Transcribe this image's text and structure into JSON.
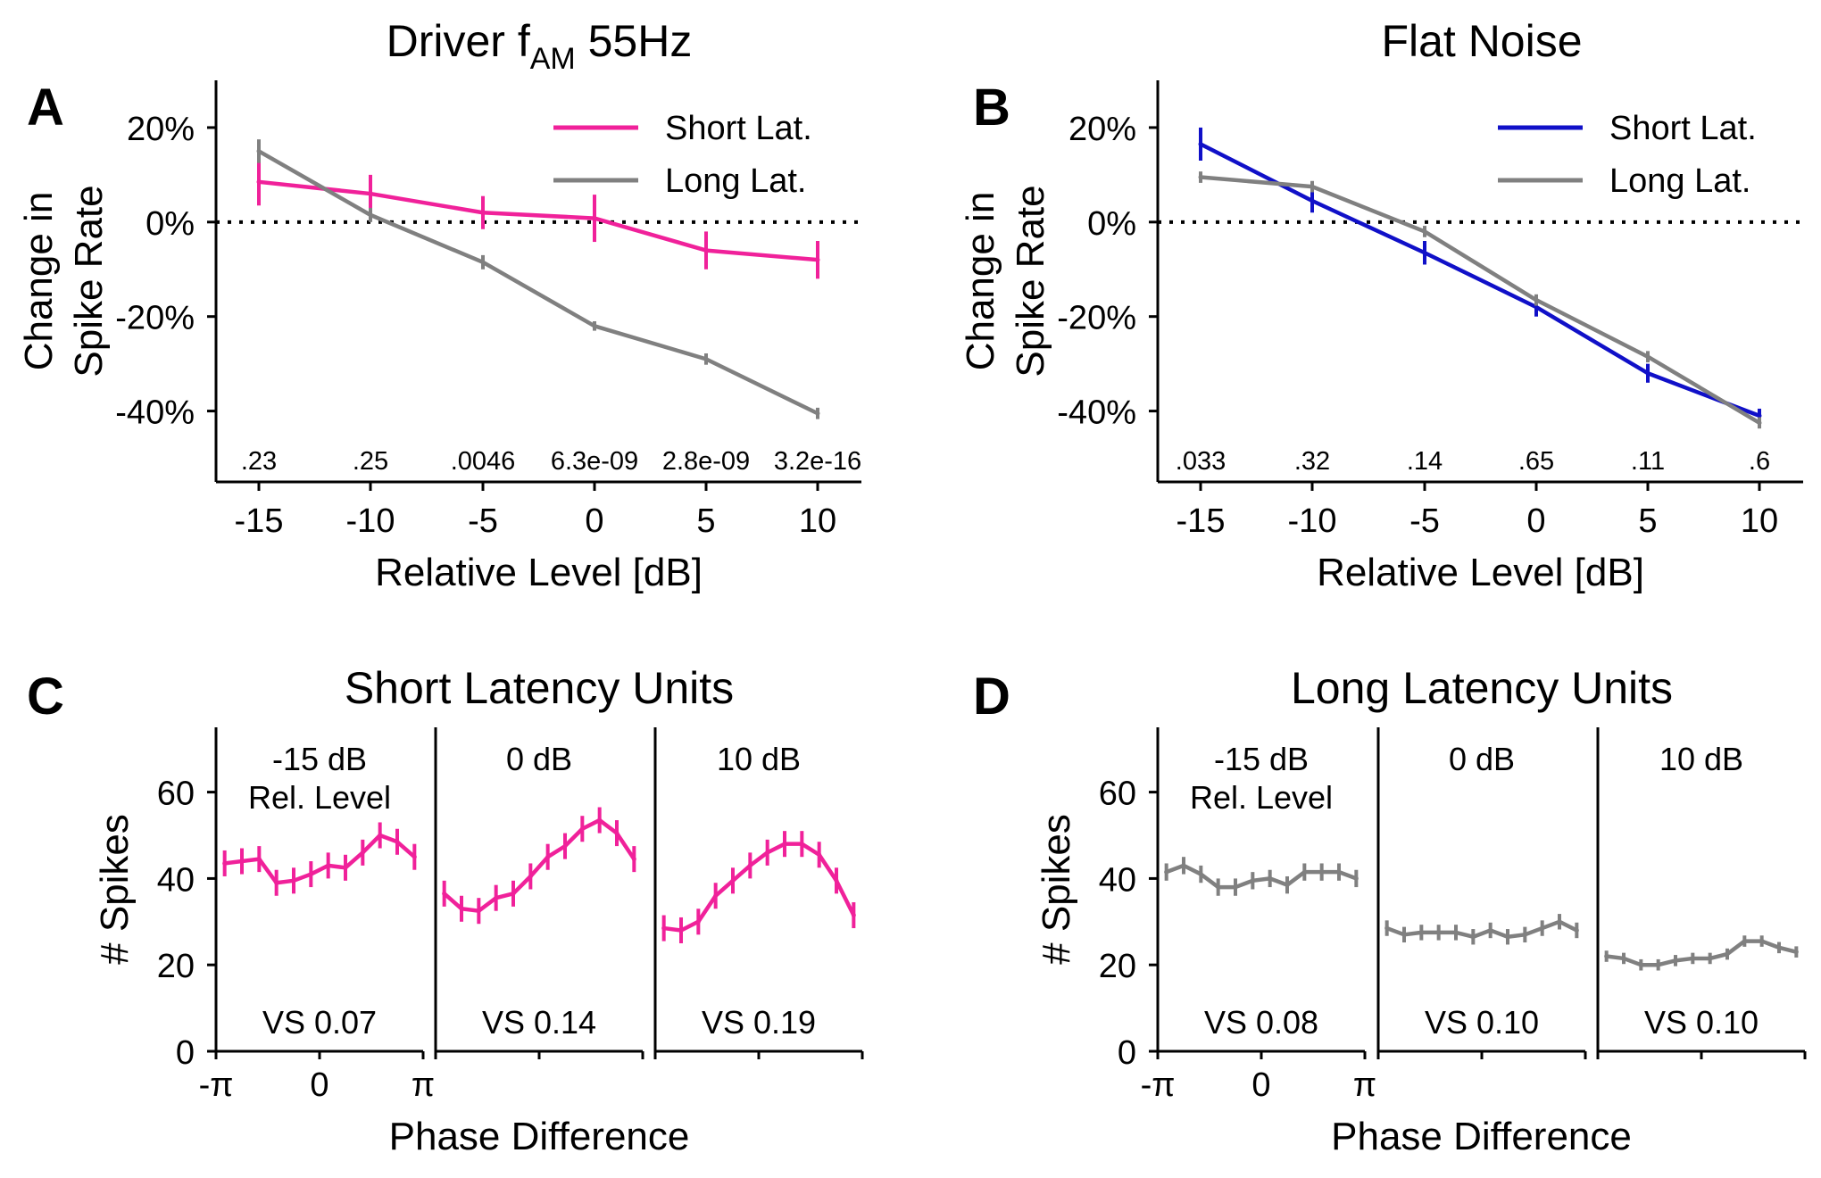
{
  "figure": {
    "panels": [
      {
        "letter": "A",
        "title_main": "Driver f",
        "title_sub": "AM",
        "title_tail": " 55Hz"
      },
      {
        "letter": "B",
        "title": "Flat Noise"
      },
      {
        "letter": "C",
        "title": "Short Latency Units"
      },
      {
        "letter": "D",
        "title": "Long Latency Units"
      }
    ]
  },
  "colors": {
    "pink": "#f0219a",
    "gray": "#808080",
    "blue": "#1010c8",
    "axis": "#000000"
  },
  "chart_data": [
    {
      "id": "A",
      "type": "line",
      "title": "Driver fAM 55Hz",
      "xlabel": "Relative Level [dB]",
      "ylabel": [
        "Change in",
        "Spike Rate"
      ],
      "x": [
        -15,
        -10,
        -5,
        0,
        5,
        10
      ],
      "xticks": [
        -15,
        -10,
        -5,
        0,
        5,
        10
      ],
      "xtick_labels": [
        "-15",
        "-10",
        "-5",
        "0",
        "5",
        "10"
      ],
      "ylim": [
        -55,
        30
      ],
      "yticks": [
        20,
        0,
        -20,
        -40
      ],
      "ytick_labels": [
        "20%",
        "0%",
        "-20%",
        "-40%"
      ],
      "reference_line": 0,
      "legend": "top-right",
      "series": [
        {
          "name": "Short Lat.",
          "color": "pink",
          "values": [
            8.5,
            6,
            2,
            0.8,
            -6,
            -8
          ],
          "errors": [
            5,
            4,
            3.5,
            5,
            4,
            4
          ]
        },
        {
          "name": "Long Lat.",
          "color": "gray",
          "values": [
            15,
            1.5,
            -8.5,
            -22,
            -29,
            -40.5
          ],
          "errors": [
            2.5,
            1.5,
            1.5,
            1,
            1.2,
            1.2
          ]
        }
      ],
      "pvalues": [
        ".23",
        ".25",
        ".0046",
        "6.3e-09",
        "2.8e-09",
        "3.2e-16"
      ]
    },
    {
      "id": "B",
      "type": "line",
      "title": "Flat Noise",
      "xlabel": "Relative Level [dB]",
      "ylabel": [
        "Change in",
        "Spike Rate"
      ],
      "x": [
        -15,
        -10,
        -5,
        0,
        5,
        10
      ],
      "xticks": [
        -15,
        -10,
        -5,
        0,
        5,
        10
      ],
      "xtick_labels": [
        "-15",
        "-10",
        "-5",
        "0",
        "5",
        "10"
      ],
      "ylim": [
        -55,
        30
      ],
      "yticks": [
        20,
        0,
        -20,
        -40
      ],
      "ytick_labels": [
        "20%",
        "0%",
        "-20%",
        "-40%"
      ],
      "reference_line": 0,
      "legend": "top-right",
      "series": [
        {
          "name": "Short Lat.",
          "color": "blue",
          "values": [
            16.5,
            4.5,
            -6.5,
            -18,
            -32,
            -41
          ],
          "errors": [
            3.5,
            2.5,
            2.5,
            2,
            2,
            1.5
          ]
        },
        {
          "name": "Long Lat.",
          "color": "gray",
          "values": [
            9.5,
            7.5,
            -2,
            -16.5,
            -28.5,
            -42.5
          ],
          "errors": [
            1.2,
            1.2,
            1.2,
            1.2,
            1.2,
            1.2
          ]
        }
      ],
      "pvalues": [
        ".033",
        ".32",
        ".14",
        ".65",
        ".11",
        ".6"
      ]
    },
    {
      "id": "C",
      "type": "line",
      "title": "Short Latency Units",
      "xlabel": "Phase Difference",
      "ylabel": "# Spikes",
      "ylim": [
        0,
        75
      ],
      "yticks": [
        0,
        20,
        40,
        60
      ],
      "ytick_labels": [
        "0",
        "20",
        "40",
        "60"
      ],
      "xtick_labels": [
        "-π",
        "0",
        "π"
      ],
      "color": "pink",
      "subplots": [
        {
          "label": "-15 dB",
          "label2": "Rel. Level",
          "vs": "VS 0.07",
          "values": [
            43.5,
            44,
            44.5,
            39,
            39.5,
            41,
            43,
            42.5,
            46,
            50,
            48.5,
            45
          ],
          "errors": [
            3,
            3,
            3,
            3,
            3,
            3,
            3,
            3,
            3,
            3,
            3,
            3
          ]
        },
        {
          "label": "0 dB",
          "vs": "VS 0.14",
          "values": [
            36.5,
            33,
            32.5,
            35.5,
            36.5,
            40.5,
            45,
            47.5,
            51.5,
            53.5,
            50.5,
            44.5
          ],
          "errors": [
            3,
            3,
            3,
            3,
            3,
            3,
            3,
            3,
            3,
            3,
            3,
            3
          ]
        },
        {
          "label": "10 dB",
          "vs": "VS 0.19",
          "values": [
            28.5,
            28,
            30,
            36,
            39.5,
            43,
            46,
            48,
            48,
            45.5,
            39.5,
            31.5
          ],
          "errors": [
            3,
            3,
            3,
            3,
            3,
            3,
            3,
            3,
            3,
            3,
            3,
            3
          ]
        }
      ]
    },
    {
      "id": "D",
      "type": "line",
      "title": "Long Latency Units",
      "xlabel": "Phase Difference",
      "ylabel": "# Spikes",
      "ylim": [
        0,
        75
      ],
      "yticks": [
        0,
        20,
        40,
        60
      ],
      "ytick_labels": [
        "0",
        "20",
        "40",
        "60"
      ],
      "xtick_labels": [
        "-π",
        "0",
        "π"
      ],
      "color": "gray",
      "subplots": [
        {
          "label": "-15 dB",
          "label2": "Rel. Level",
          "vs": "VS 0.08",
          "values": [
            41.5,
            43,
            41,
            38,
            38,
            39.5,
            40,
            38.5,
            41.5,
            41.5,
            41.5,
            40
          ],
          "errors": [
            2,
            2,
            2,
            2,
            2,
            2,
            2,
            2,
            2,
            2,
            2,
            2
          ]
        },
        {
          "label": "0 dB",
          "vs": "VS 0.10",
          "values": [
            28.5,
            27,
            27.5,
            27.5,
            27.5,
            26.5,
            28,
            26.5,
            27,
            28.5,
            30,
            28
          ],
          "errors": [
            1.8,
            1.8,
            1.8,
            1.8,
            1.8,
            1.8,
            1.8,
            1.8,
            1.8,
            1.8,
            1.8,
            1.8
          ]
        },
        {
          "label": "10 dB",
          "vs": "VS 0.10",
          "values": [
            22,
            21.5,
            20,
            20,
            21,
            21.5,
            21.5,
            22.5,
            25.5,
            25.5,
            24,
            23
          ],
          "errors": [
            1.3,
            1.3,
            1.3,
            1.3,
            1.3,
            1.3,
            1.3,
            1.3,
            1.3,
            1.3,
            1.3,
            1.3
          ]
        }
      ]
    }
  ]
}
